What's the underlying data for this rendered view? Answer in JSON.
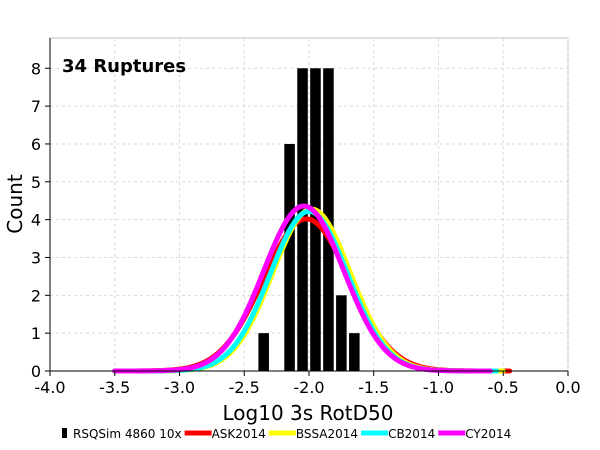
{
  "chart_data": {
    "type": "histogram-with-lines",
    "annotation": "34 Ruptures",
    "xlabel": "Log10 3s RotD50",
    "ylabel": "Count",
    "xlim": [
      -4.0,
      0.0
    ],
    "ylim": [
      0,
      8.8
    ],
    "x_ticks": [
      "-4.0",
      "-3.5",
      "-3.0",
      "-2.5",
      "-2.0",
      "-1.5",
      "-1.0",
      "-0.5",
      "0.0"
    ],
    "y_ticks": [
      "0",
      "1",
      "2",
      "3",
      "4",
      "5",
      "6",
      "7",
      "8"
    ],
    "grid": true,
    "legend_position": "bottom",
    "histogram": {
      "name": "RSQSim 4860 10x",
      "color": "#000000",
      "bin_width": 0.1,
      "bins": [
        {
          "x": -2.35,
          "count": 1
        },
        {
          "x": -2.15,
          "count": 6
        },
        {
          "x": -2.05,
          "count": 8
        },
        {
          "x": -1.95,
          "count": 8
        },
        {
          "x": -1.85,
          "count": 8
        },
        {
          "x": -1.75,
          "count": 2
        },
        {
          "x": -1.65,
          "count": 1
        }
      ]
    },
    "series": [
      {
        "name": "ASK2014",
        "color": "#ff0000",
        "mean": -2.02,
        "sigma": 0.33,
        "peak": 4.02,
        "x_range": [
          -3.5,
          -0.45
        ]
      },
      {
        "name": "BSSA2014",
        "color": "#ffff00",
        "mean": -1.98,
        "sigma": 0.3,
        "peak": 4.28,
        "x_range": [
          -3.5,
          -0.5
        ]
      },
      {
        "name": "CB2014",
        "color": "#00ffff",
        "mean": -2.0,
        "sigma": 0.3,
        "peak": 4.22,
        "x_range": [
          -3.5,
          -0.55
        ]
      },
      {
        "name": "CY2014",
        "color": "#ff00ff",
        "mean": -2.04,
        "sigma": 0.31,
        "peak": 4.36,
        "x_range": [
          -3.5,
          -0.6
        ]
      }
    ]
  }
}
